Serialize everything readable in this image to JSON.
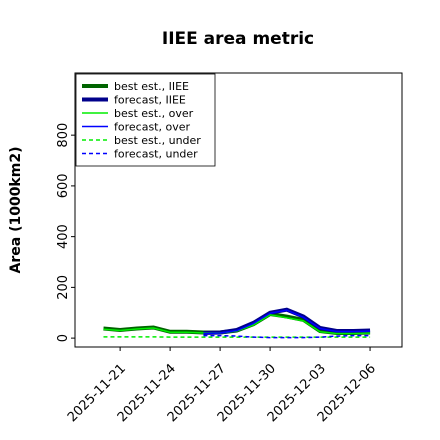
{
  "chart_data": {
    "type": "line",
    "title": "IIEE area metric",
    "y_label": "Area (1000km2)",
    "x": [
      "2025-11-20",
      "2025-11-21",
      "2025-11-22",
      "2025-11-23",
      "2025-11-24",
      "2025-11-25",
      "2025-11-26",
      "2025-11-27",
      "2025-11-28",
      "2025-11-29",
      "2025-11-30",
      "2025-12-01",
      "2025-12-02",
      "2025-12-03",
      "2025-12-04",
      "2025-12-05",
      "2025-12-06"
    ],
    "xlim": [
      "2025-11-18T07:00:00Z",
      "2025-12-07T22:00:00Z"
    ],
    "xticks": [
      "2025-11-21",
      "2025-11-24",
      "2025-11-27",
      "2025-11-30",
      "2025-12-03",
      "2025-12-06"
    ],
    "xtick_colors": [
      "#000000",
      "#000000",
      "#228b22",
      "#000000",
      "#000000",
      "#000000"
    ],
    "ylim": [
      -35,
      1045
    ],
    "yticks": [
      0,
      200,
      400,
      600,
      800
    ],
    "grid": false,
    "legend": "upper left",
    "series": [
      {
        "name": "best est., IIEE",
        "color": "#006400",
        "width": 4,
        "dash": false,
        "values": [
          38,
          32,
          38,
          42,
          25,
          25,
          22,
          22,
          30,
          55,
          95,
          85,
          72,
          28,
          20,
          20,
          22
        ]
      },
      {
        "name": "forecast, IIEE",
        "color": "#00008b",
        "width": 4,
        "dash": false,
        "values": [
          null,
          null,
          null,
          null,
          null,
          null,
          20,
          22,
          32,
          60,
          100,
          112,
          85,
          40,
          28,
          28,
          30
        ]
      },
      {
        "name": "best est., over",
        "color": "#00ee00",
        "width": 1.5,
        "dash": false,
        "values": [
          35,
          30,
          36,
          40,
          23,
          23,
          20,
          20,
          28,
          52,
          92,
          80,
          68,
          25,
          18,
          18,
          20
        ]
      },
      {
        "name": "forecast, over",
        "color": "#0000ff",
        "width": 1.5,
        "dash": false,
        "values": [
          null,
          null,
          null,
          null,
          null,
          null,
          18,
          20,
          30,
          58,
          98,
          110,
          82,
          38,
          26,
          26,
          28
        ]
      },
      {
        "name": "best est., under",
        "color": "#00ee00",
        "width": 1.5,
        "dash": true,
        "values": [
          5,
          5,
          5,
          5,
          4,
          4,
          4,
          4,
          4,
          4,
          4,
          4,
          4,
          4,
          4,
          4,
          4
        ]
      },
      {
        "name": "forecast, under",
        "color": "#0000ff",
        "width": 1.5,
        "dash": true,
        "values": [
          null,
          null,
          null,
          null,
          null,
          null,
          10,
          10,
          8,
          4,
          2,
          2,
          2,
          4,
          8,
          10,
          10
        ]
      }
    ]
  }
}
